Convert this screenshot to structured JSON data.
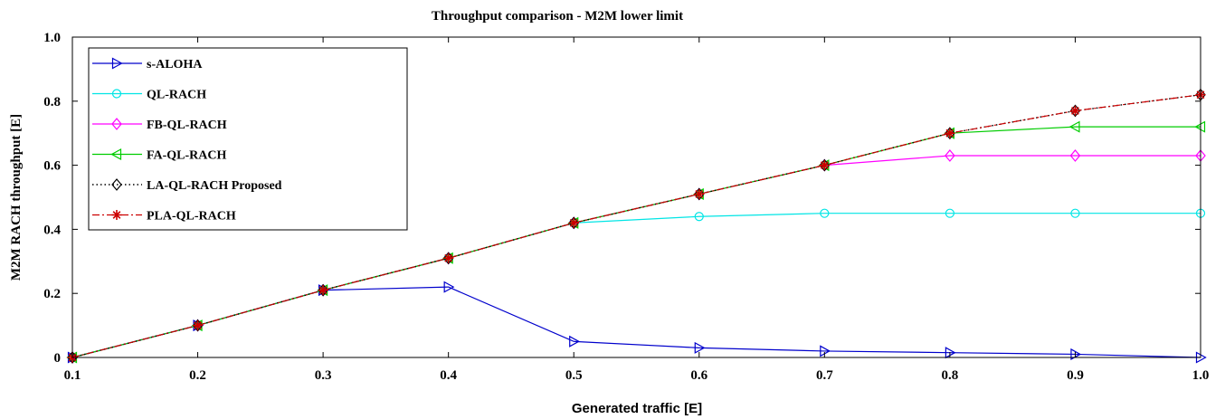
{
  "chart_data": {
    "type": "line",
    "title": "Throughput comparison - M2M lower limit",
    "xlabel": "Generated traffic [E]",
    "ylabel": "M2M RACH throughput [E]",
    "xlim": [
      0.1,
      1.0
    ],
    "ylim": [
      0,
      1.0
    ],
    "x": [
      0.1,
      0.2,
      0.3,
      0.4,
      0.5,
      0.6,
      0.7,
      0.8,
      0.9,
      1.0
    ],
    "x_ticks": [
      "0.1",
      "0.2",
      "0.3",
      "0.4",
      "0.5",
      "0.6",
      "0.7",
      "0.8",
      "0.9",
      "1.0"
    ],
    "y_ticks": [
      "0",
      "0.2",
      "0.4",
      "0.6",
      "0.8",
      "1.0"
    ],
    "grid": false,
    "legend_position": "top-left",
    "series": [
      {
        "name": "s-ALOHA",
        "color": "#0000cc",
        "marker": "triangle-right",
        "dash": "solid",
        "values": [
          0.0,
          0.1,
          0.21,
          0.22,
          0.05,
          0.03,
          0.02,
          0.015,
          0.01,
          0.0
        ]
      },
      {
        "name": "QL-RACH",
        "color": "#00e5e5",
        "marker": "circle",
        "dash": "solid",
        "values": [
          0.0,
          0.1,
          0.21,
          0.31,
          0.42,
          0.44,
          0.45,
          0.45,
          0.45,
          0.45
        ]
      },
      {
        "name": "FB-QL-RACH",
        "color": "#ff00ff",
        "marker": "diamond",
        "dash": "solid",
        "values": [
          0.0,
          0.1,
          0.21,
          0.31,
          0.42,
          0.51,
          0.6,
          0.63,
          0.63,
          0.63
        ]
      },
      {
        "name": "FA-QL-RACH",
        "color": "#00cc00",
        "marker": "triangle-left",
        "dash": "solid",
        "values": [
          0.0,
          0.1,
          0.21,
          0.31,
          0.42,
          0.51,
          0.6,
          0.7,
          0.72,
          0.72
        ]
      },
      {
        "name": "LA-QL-RACH Proposed",
        "color": "#000000",
        "marker": "diamond",
        "dash": "dotted",
        "values": [
          0.0,
          0.1,
          0.21,
          0.31,
          0.42,
          0.51,
          0.6,
          0.7,
          0.77,
          0.82
        ]
      },
      {
        "name": "PLA-QL-RACH",
        "color": "#cc0000",
        "marker": "asterisk",
        "dash": "dashdot",
        "values": [
          0.0,
          0.1,
          0.21,
          0.31,
          0.42,
          0.51,
          0.6,
          0.7,
          0.77,
          0.82
        ]
      }
    ]
  }
}
